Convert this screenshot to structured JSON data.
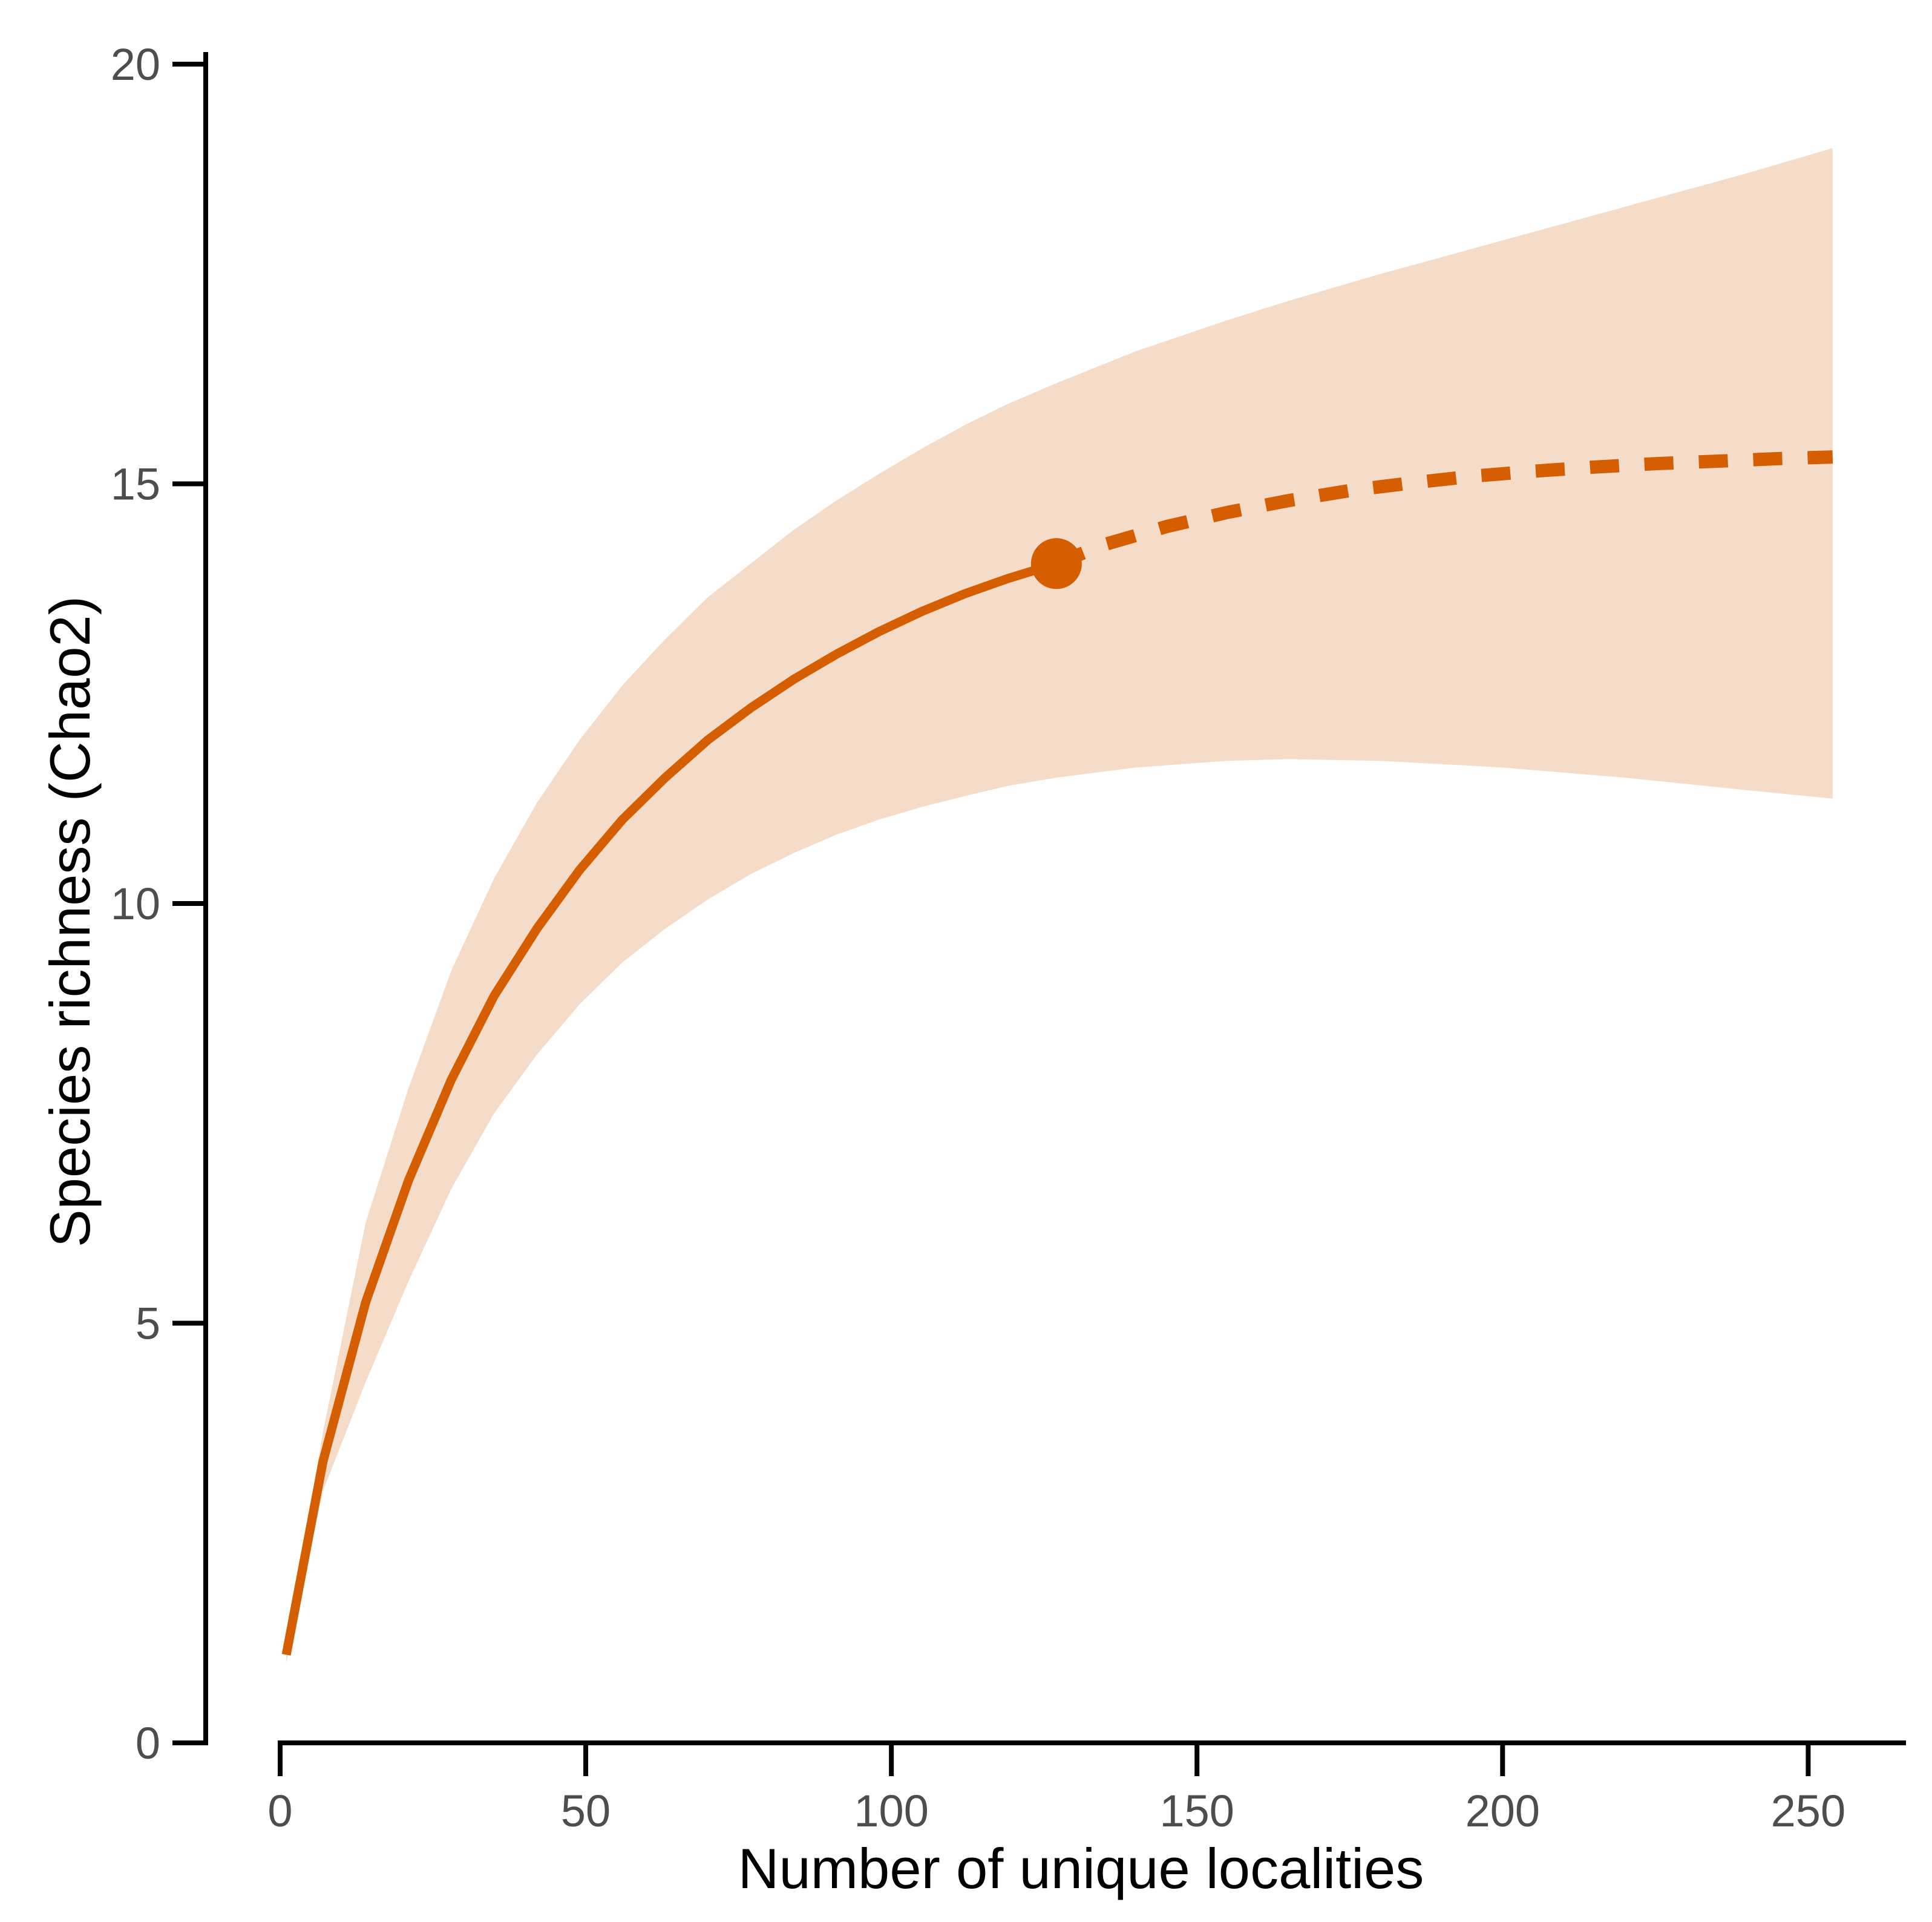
{
  "chart_data": {
    "type": "line",
    "title": "",
    "xlabel": "Number of unique localities",
    "ylabel": "Species richness (Chao2)",
    "xlim": [
      0,
      266
    ],
    "ylim": [
      0,
      20
    ],
    "xticks": [
      0,
      50,
      100,
      150,
      200,
      250
    ],
    "yticks": [
      0,
      5,
      10,
      15,
      20
    ],
    "xtick_labels": [
      "0",
      "50",
      "100",
      "150",
      "200",
      "250"
    ],
    "ytick_labels": [
      "0",
      "5",
      "10",
      "15",
      "20"
    ],
    "grid": false,
    "colors": {
      "line": "#d55e00",
      "band": "#f5dcc8"
    },
    "observed": {
      "style": "solid",
      "x": [
        1,
        7,
        14,
        21,
        28,
        35,
        42,
        49,
        56,
        63,
        70,
        77,
        84,
        91,
        98,
        105,
        112,
        119,
        127
      ],
      "y": [
        1.05,
        3.35,
        5.25,
        6.7,
        7.9,
        8.9,
        9.7,
        10.4,
        11.0,
        11.5,
        11.95,
        12.33,
        12.67,
        12.97,
        13.24,
        13.48,
        13.69,
        13.87,
        14.05
      ]
    },
    "extrapolated": {
      "style": "dashed",
      "x": [
        127,
        135,
        145,
        155,
        165,
        175,
        185,
        195,
        205,
        215,
        225,
        235,
        245,
        254
      ],
      "y": [
        14.05,
        14.28,
        14.49,
        14.66,
        14.8,
        14.92,
        15.01,
        15.09,
        15.15,
        15.2,
        15.24,
        15.27,
        15.3,
        15.32
      ]
    },
    "reference_point": {
      "x": 127,
      "y": 14.05
    },
    "confidence_band": {
      "x": [
        1,
        7,
        14,
        21,
        28,
        35,
        42,
        49,
        56,
        63,
        70,
        77,
        84,
        91,
        98,
        105,
        112,
        119,
        127,
        140,
        155,
        165,
        180,
        200,
        220,
        240,
        254
      ],
      "lower": [
        0.95,
        3.0,
        4.3,
        5.5,
        6.6,
        7.5,
        8.2,
        8.8,
        9.3,
        9.7,
        10.05,
        10.35,
        10.6,
        10.82,
        11.0,
        11.15,
        11.28,
        11.4,
        11.5,
        11.62,
        11.7,
        11.72,
        11.7,
        11.62,
        11.5,
        11.35,
        11.25
      ],
      "upper": [
        1.15,
        3.7,
        6.2,
        7.8,
        9.2,
        10.3,
        11.2,
        11.95,
        12.6,
        13.15,
        13.65,
        14.05,
        14.45,
        14.8,
        15.12,
        15.42,
        15.7,
        15.95,
        16.2,
        16.58,
        16.95,
        17.18,
        17.5,
        17.9,
        18.3,
        18.7,
        19.0
      ]
    }
  }
}
